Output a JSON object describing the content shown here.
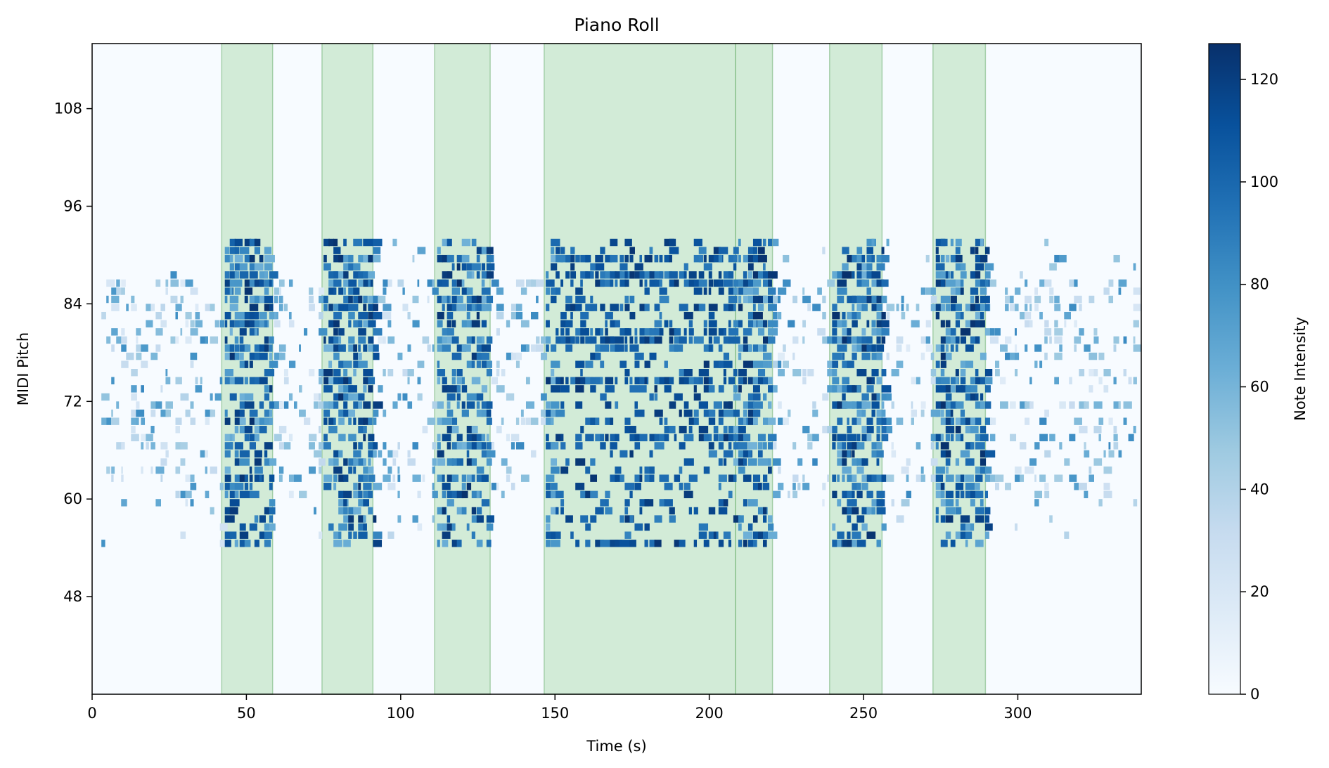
{
  "chart_data": {
    "type": "heatmap",
    "title": "Piano Roll",
    "xlabel": "Time (s)",
    "ylabel": "MIDI Pitch",
    "xlim": [
      0,
      340
    ],
    "ylim": [
      36,
      116
    ],
    "xticks": [
      0,
      50,
      100,
      150,
      200,
      250,
      300
    ],
    "yticks": [
      48,
      60,
      72,
      84,
      96,
      108
    ],
    "colormap": "Blues",
    "colorbar": {
      "label": "Note Intensity",
      "range": [
        0,
        127
      ],
      "ticks": [
        0,
        20,
        40,
        60,
        80,
        100,
        120
      ]
    },
    "highlight_color": "#a5d6a7",
    "highlighted_segments": [
      [
        42,
        58.5
      ],
      [
        74.5,
        91
      ],
      [
        111,
        129
      ],
      [
        146.5,
        208.5
      ],
      [
        208.5,
        220.5
      ],
      [
        239,
        256
      ],
      [
        272.5,
        289.5
      ]
    ],
    "notes_summary": {
      "pitch_range": [
        54,
        91
      ],
      "time_range": [
        3,
        340
      ],
      "dominant_pitches": [
        62,
        66,
        69,
        71,
        74,
        78,
        79,
        81,
        83,
        84,
        86,
        87,
        89
      ]
    }
  }
}
